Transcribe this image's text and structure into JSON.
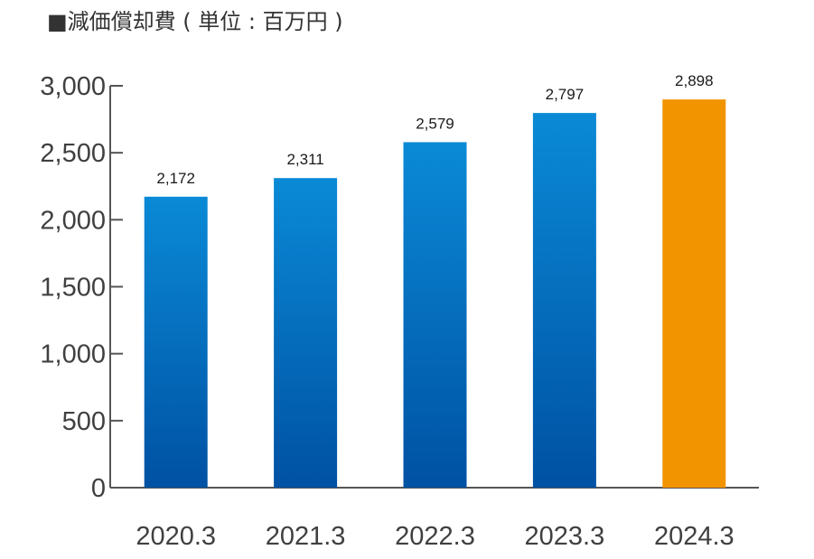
{
  "chart_data": {
    "type": "bar",
    "title": "■減価償却費 ( 単位 : 百万円 )",
    "categories": [
      "2020.3",
      "2021.3",
      "2022.3",
      "2023.3",
      "2024.3"
    ],
    "values": [
      2172,
      2311,
      2579,
      2797,
      2898
    ],
    "data_labels": [
      "2,172",
      "2,311",
      "2,579",
      "2,797",
      "2,898"
    ],
    "y_ticks": [
      0,
      500,
      1000,
      1500,
      2000,
      2500,
      3000
    ],
    "y_tick_labels": [
      "0",
      "500",
      "1,000",
      "1,500",
      "2,000",
      "2,500",
      "3,000"
    ],
    "ylim": [
      0,
      3000
    ],
    "grid": false,
    "colors": {
      "bar_top": "#0a8ad6",
      "bar_bottom": "#0051a3",
      "highlight": "#f29300",
      "axis": "#555555"
    },
    "highlight_index": 4
  }
}
